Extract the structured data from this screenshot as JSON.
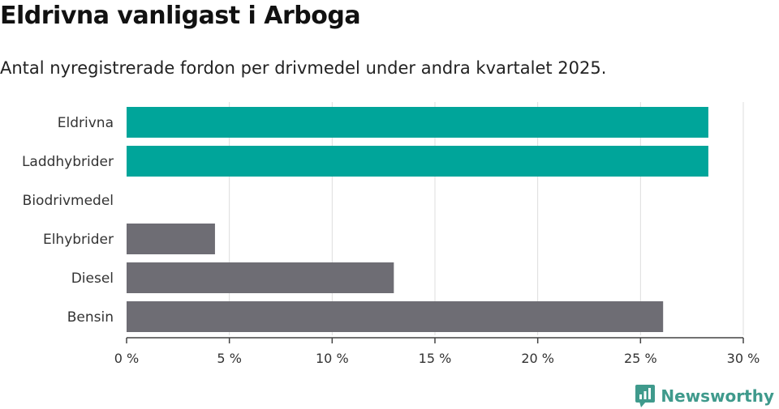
{
  "header": {
    "title": "Eldrivna vanligast i Arboga",
    "subtitle": "Antal nyregistrerade fordon per drivmedel under andra kvartalet 2025."
  },
  "brand": {
    "name": "Newsworthy",
    "logo_icon": "bar-chart-speech-bubble-icon",
    "color": "#3f9a8c"
  },
  "colors": {
    "highlight": "#00a59a",
    "other": "#6e6d74",
    "grid": "#dddddd",
    "axis": "#444444"
  },
  "chart_data": {
    "type": "bar",
    "orientation": "horizontal",
    "categories": [
      "Eldrivna",
      "Laddhybrider",
      "Biodrivmedel",
      "Elhybrider",
      "Diesel",
      "Bensin"
    ],
    "values": [
      28.3,
      28.3,
      0,
      4.3,
      13.0,
      26.1
    ],
    "highlighted": [
      "Eldrivna",
      "Laddhybrider"
    ],
    "xlim": [
      0,
      30
    ],
    "xticks": [
      0,
      5,
      10,
      15,
      20,
      25,
      30
    ],
    "xtick_labels": [
      "0 %",
      "5 %",
      "10 %",
      "15 %",
      "20 %",
      "25 %",
      "30 %"
    ],
    "grid": "vertical",
    "legend": "none",
    "xlabel": "",
    "ylabel": ""
  }
}
